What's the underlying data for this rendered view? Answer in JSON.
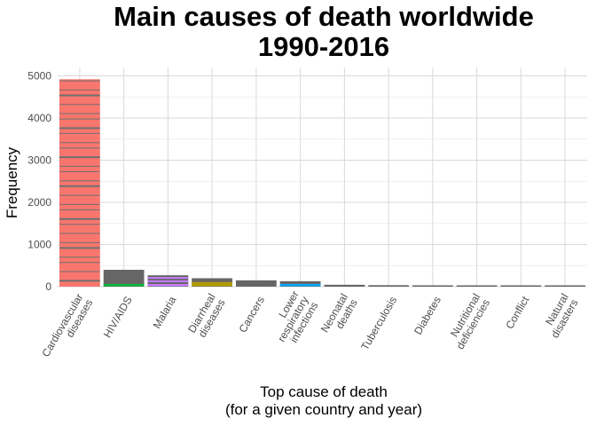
{
  "chart_data": {
    "type": "bar",
    "title": "Main causes of death worldwide\n1990-2016",
    "xlabel": "Top cause of death\n(for a given country and year)",
    "ylabel": "Frequency",
    "categories": [
      "Cardiovascular\ndiseases",
      "HIV/AIDS",
      "Malaria",
      "Diarrheal\ndiseases",
      "Cancers",
      "Lower\nrespiratory\ninfections",
      "Neonatal\ndeaths",
      "Tuberculosis",
      "Diabetes",
      "Nutritional\ndeficiencies",
      "Conflict",
      "Natural\ndisasters"
    ],
    "values": [
      4920,
      400,
      270,
      200,
      150,
      130,
      45,
      35,
      25,
      18,
      15,
      12
    ],
    "ylim": [
      0,
      5200
    ],
    "yticks": [
      "0",
      "1000",
      "2000",
      "3000",
      "4000",
      "5000"
    ],
    "grid": true,
    "colors": {
      "cardiovascular": "#f8766d",
      "other_bars": "#666666",
      "stripe": "#707070",
      "hiv_accent": "#00ba38",
      "malaria_accent": "#c77cff",
      "diarrheal_accent": "#b79f00",
      "lri_accent": "#00a9ff",
      "grid": "#d9d9d9"
    }
  }
}
